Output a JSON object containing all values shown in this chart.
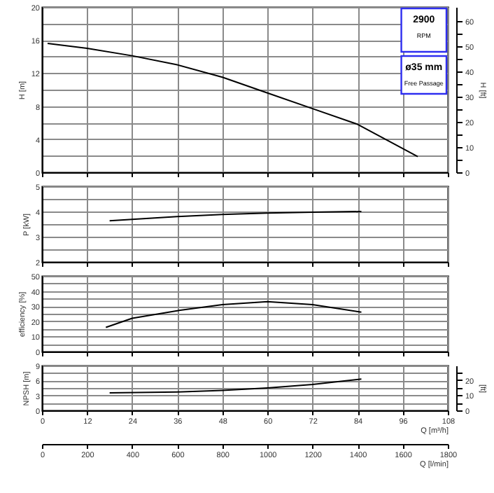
{
  "chart_data": [
    {
      "type": "line",
      "color": "#000000",
      "x": [
        1.5,
        12,
        24,
        36,
        48,
        60,
        72,
        84,
        100
      ],
      "values": [
        15.6,
        15.0,
        14.1,
        13.0,
        11.5,
        9.6,
        7.7,
        5.8,
        1.9
      ],
      "xlim": [
        0,
        108
      ],
      "xticks": [
        0,
        12,
        24,
        36,
        48,
        60,
        72,
        84,
        96,
        108
      ],
      "ylim": [
        0,
        20
      ],
      "yticks": [
        0,
        {
          "value": 2,
          "label": null
        },
        4,
        {
          "value": 6,
          "label": null
        },
        8,
        {
          "value": 10,
          "label": null
        },
        12,
        {
          "value": 14,
          "label": null
        },
        16,
        {
          "value": 18,
          "label": null
        },
        20
      ],
      "ylabel": "H [m]",
      "y2lim": [
        0,
        65.6
      ],
      "y2ticks": [
        0,
        {
          "value": 5,
          "label": null
        },
        10,
        {
          "value": 15,
          "label": null
        },
        20,
        {
          "value": 25,
          "label": null
        },
        30,
        {
          "value": 35,
          "label": null
        },
        40,
        {
          "value": 45,
          "label": null
        },
        50,
        {
          "value": 55,
          "label": null
        },
        60
      ],
      "y2label": "H [ft]",
      "annotations": [
        "2900",
        "RPM",
        "ø35 mm",
        "Free Passage"
      ],
      "grid": true,
      "tick_labels": "y"
    },
    {
      "type": "line",
      "color": "#000000",
      "x": [
        18,
        36,
        48,
        60,
        72,
        85
      ],
      "values": [
        3.63,
        3.8,
        3.88,
        3.94,
        3.97,
        4.0
      ],
      "xlim": [
        0,
        108
      ],
      "xticks": [
        0,
        12,
        24,
        36,
        48,
        60,
        72,
        84,
        96,
        108
      ],
      "ylim": [
        2,
        5
      ],
      "yticks": [
        2,
        {
          "value": 2.5,
          "label": null
        },
        3,
        {
          "value": 3.5,
          "label": null
        },
        4,
        {
          "value": 4.5,
          "label": null
        },
        5
      ],
      "ylabel": "P [kW]",
      "grid": true,
      "tick_labels": "y"
    },
    {
      "type": "line",
      "color": "#000000",
      "x": [
        17,
        24,
        36,
        48,
        60,
        72,
        85
      ],
      "values": [
        16,
        22,
        27,
        31,
        33,
        31,
        26
      ],
      "xlim": [
        0,
        108
      ],
      "xticks": [
        0,
        12,
        24,
        36,
        48,
        60,
        72,
        84,
        96,
        108
      ],
      "ylim": [
        0,
        50
      ],
      "yticks": [
        0,
        {
          "value": 5,
          "label": null
        },
        10,
        {
          "value": 15,
          "label": null
        },
        20,
        {
          "value": 25,
          "label": null
        },
        30,
        {
          "value": 35,
          "label": null
        },
        40,
        {
          "value": 45,
          "label": null
        },
        50
      ],
      "ylabel": "efficiency [%]",
      "grid": true,
      "tick_labels": "y"
    },
    {
      "type": "line",
      "color": "#000000",
      "x": [
        18,
        36,
        48,
        60,
        72,
        85
      ],
      "values": [
        3.5,
        3.7,
        4.0,
        4.5,
        5.2,
        6.3
      ],
      "xlim": [
        0,
        108
      ],
      "xticks": [
        0,
        12,
        24,
        36,
        48,
        60,
        72,
        84,
        96,
        108
      ],
      "xlabel": "Q [m³/h]",
      "ylim": [
        0,
        9
      ],
      "yticks": [
        0,
        {
          "value": 1.5,
          "label": null
        },
        3,
        {
          "value": 4.5,
          "label": null
        },
        6,
        {
          "value": 7.5,
          "label": null
        },
        9
      ],
      "ylabel": "NPSH [m]",
      "y2lim": [
        0,
        29.5
      ],
      "y2ticks": [
        0,
        {
          "value": 5,
          "label": null
        },
        10,
        {
          "value": 15,
          "label": null
        },
        20,
        {
          "value": 25,
          "label": null
        }
      ],
      "y2label": "[ft]",
      "x2lim": [
        0,
        1800
      ],
      "x2ticks": [
        0,
        200,
        400,
        600,
        800,
        1000,
        1200,
        1400,
        1600,
        1800
      ],
      "x2label": "Q [l/min]",
      "grid": true
    }
  ]
}
